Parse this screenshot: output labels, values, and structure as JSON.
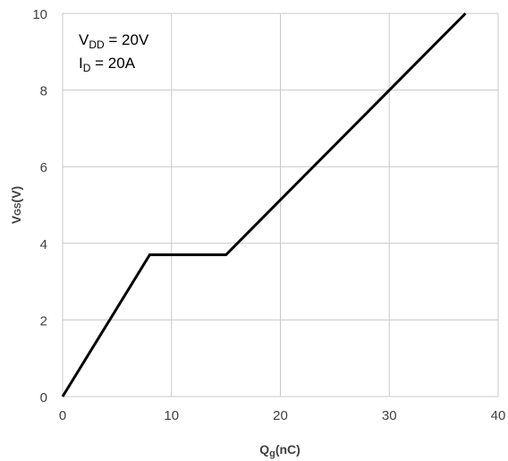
{
  "chart_data": {
    "type": "line",
    "title": "",
    "xlabel": {
      "main": "Q",
      "sub": "g",
      "suffix": "(nC)"
    },
    "ylabel": {
      "main": "V",
      "sub": "GS",
      "suffix": "(V)"
    },
    "xlim": [
      0,
      40
    ],
    "ylim": [
      0,
      10
    ],
    "xticks": [
      0,
      10,
      20,
      30,
      40
    ],
    "yticks": [
      0,
      2,
      4,
      6,
      8,
      10
    ],
    "grid": true,
    "series": [
      {
        "x": [
          0,
          8,
          15,
          37
        ],
        "y": [
          0,
          3.7,
          3.7,
          10
        ]
      }
    ],
    "annotations": [
      {
        "main": "V",
        "sub": "DD",
        "suffix": " = 20V"
      },
      {
        "main": "I",
        "sub": "D",
        "suffix": " = 20A"
      }
    ],
    "colors": {
      "line": "#000000",
      "grid": "#c8c8c8",
      "text": "#404040"
    }
  }
}
